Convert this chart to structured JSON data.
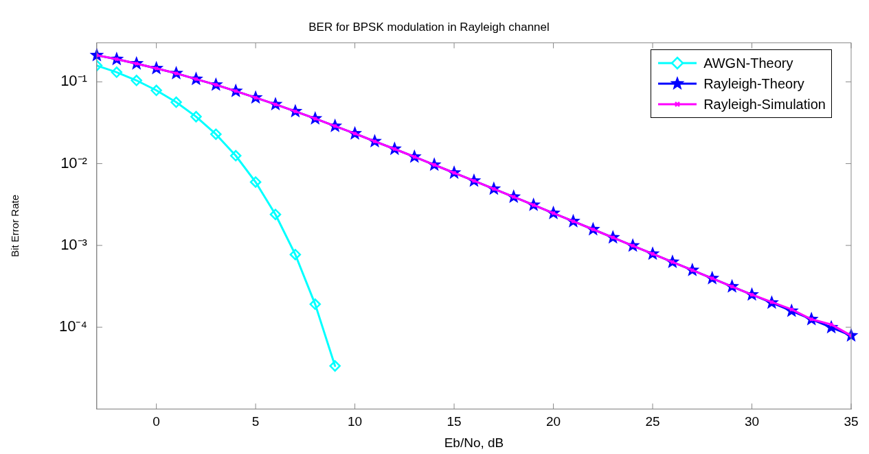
{
  "chart_data": {
    "type": "line",
    "title": "BER for BPSK modulation in Rayleigh channel",
    "xlabel": "Eb/No, dB",
    "ylabel": "Bit Error Rate",
    "log": "y",
    "grid": false,
    "legend": "top right",
    "line_style": "solid",
    "xlim": [
      -3,
      35
    ],
    "xticks": [
      0,
      5,
      10,
      15,
      20,
      25,
      30,
      35
    ],
    "ylim": [
      1e-05,
      0.3
    ],
    "yticks": [
      {
        "value": 0.1,
        "label": "10⁻¹"
      },
      {
        "value": 0.01,
        "label": "10⁻²"
      },
      {
        "value": 0.001,
        "label": "10⁻³"
      },
      {
        "value": 0.0001,
        "label": "10⁻⁴"
      }
    ],
    "series": [
      {
        "name": "AWGN-Theory",
        "color": "#00ffff",
        "marker": "diamond",
        "x": [
          -3,
          -2,
          -1,
          0,
          1,
          2,
          3,
          4,
          5,
          6,
          7,
          8,
          9
        ],
        "values": [
          0.158,
          0.131,
          0.104,
          0.0786,
          0.0563,
          0.0375,
          0.0229,
          0.0125,
          0.00595,
          0.00239,
          0.000773,
          0.000191,
          3.36e-05
        ]
      },
      {
        "name": "Rayleigh-Theory",
        "color": "#0000ff",
        "marker": "star",
        "x": [
          -3,
          -2,
          -1,
          0,
          1,
          2,
          3,
          4,
          5,
          6,
          7,
          8,
          9,
          10,
          11,
          12,
          13,
          14,
          15,
          16,
          17,
          18,
          19,
          20,
          21,
          22,
          23,
          24,
          25,
          26,
          27,
          28,
          29,
          30,
          31,
          32,
          33,
          34,
          35
        ],
        "values": [
          0.211,
          0.189,
          0.167,
          0.146,
          0.127,
          0.108,
          0.092,
          0.077,
          0.064,
          0.053,
          0.0435,
          0.0355,
          0.0288,
          0.0233,
          0.0187,
          0.0151,
          0.0121,
          0.00966,
          0.00772,
          0.00616,
          0.00491,
          0.00392,
          0.00312,
          0.00248,
          0.00197,
          0.00157,
          0.00125,
          0.000992,
          0.000789,
          0.000627,
          0.000498,
          0.000396,
          0.000314,
          0.00025,
          0.000199,
          0.000158,
          0.000125,
          9.95e-05,
          7.9e-05
        ]
      },
      {
        "name": "Rayleigh-Simulation",
        "color": "#ff00ff",
        "marker": "cross",
        "x": [
          -3,
          -2,
          -1,
          0,
          1,
          2,
          3,
          4,
          5,
          6,
          7,
          8,
          9,
          10,
          11,
          12,
          13,
          14,
          15,
          16,
          17,
          18,
          19,
          20,
          21,
          22,
          23,
          24,
          25,
          26,
          27,
          28,
          29,
          30,
          31,
          32,
          33,
          34,
          35
        ],
        "values": [
          0.211,
          0.189,
          0.167,
          0.146,
          0.127,
          0.108,
          0.092,
          0.077,
          0.064,
          0.053,
          0.0435,
          0.0355,
          0.0288,
          0.0233,
          0.0187,
          0.0151,
          0.0121,
          0.00966,
          0.00772,
          0.00616,
          0.00491,
          0.00392,
          0.00312,
          0.00248,
          0.00197,
          0.00157,
          0.00125,
          0.000992,
          0.000789,
          0.000627,
          0.000498,
          0.000396,
          0.000314,
          0.00025,
          0.000203,
          0.000165,
          0.000125,
          0.000108,
          7.9e-05
        ]
      }
    ]
  }
}
